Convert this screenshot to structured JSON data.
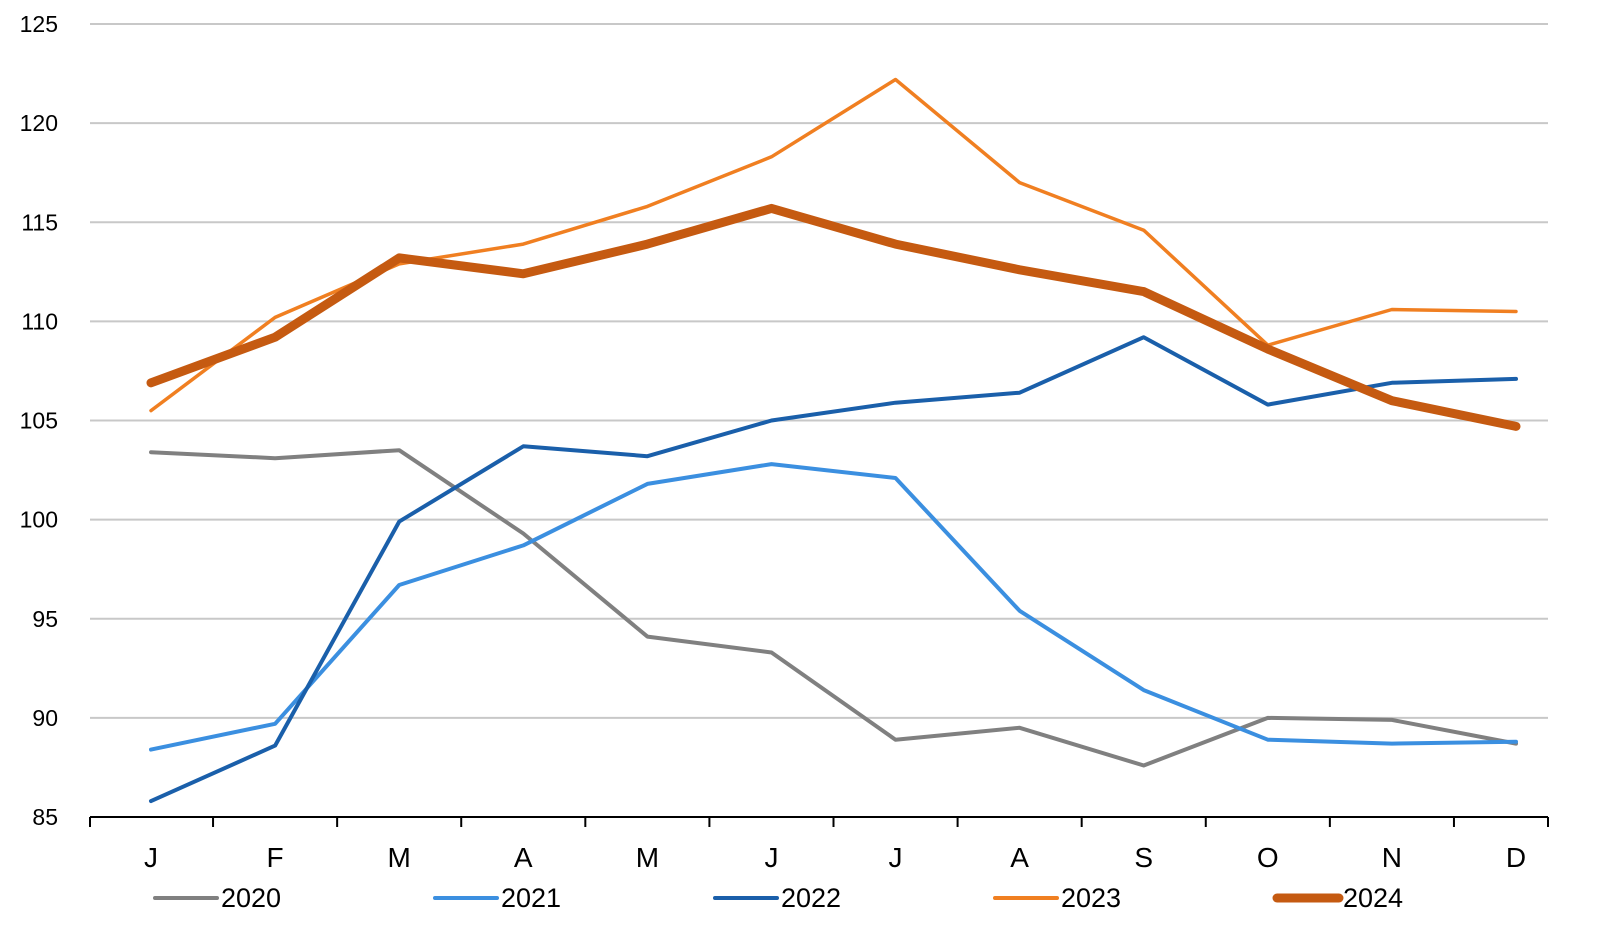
{
  "chart_data": {
    "type": "line",
    "title": "",
    "xlabel": "",
    "ylabel": "",
    "categories": [
      "J",
      "F",
      "M",
      "A",
      "M",
      "J",
      "J",
      "A",
      "S",
      "O",
      "N",
      "D"
    ],
    "ylim": [
      85,
      125
    ],
    "yticks": [
      85,
      90,
      95,
      100,
      105,
      110,
      115,
      120,
      125
    ],
    "grid": "horizontal",
    "legend_position": "bottom",
    "series": [
      {
        "name": "2020",
        "color": "#808080",
        "emphasis": false,
        "values": [
          103.4,
          103.1,
          103.5,
          99.3,
          94.1,
          93.3,
          88.9,
          89.5,
          87.6,
          90.0,
          89.9,
          88.7
        ]
      },
      {
        "name": "2021",
        "color": "#3b8fe0",
        "emphasis": false,
        "values": [
          88.4,
          89.7,
          96.7,
          98.7,
          101.8,
          102.8,
          102.1,
          95.4,
          91.4,
          88.9,
          88.7,
          88.8
        ]
      },
      {
        "name": "2022",
        "color": "#1a5faa",
        "emphasis": false,
        "values": [
          85.8,
          88.6,
          99.9,
          103.7,
          103.2,
          105.0,
          105.9,
          106.4,
          109.2,
          105.8,
          106.9,
          107.1
        ]
      },
      {
        "name": "2023",
        "color": "#f07f21",
        "emphasis": false,
        "values": [
          105.5,
          110.2,
          112.9,
          113.9,
          115.8,
          118.3,
          122.2,
          117.0,
          114.6,
          108.8,
          110.6,
          110.5
        ]
      },
      {
        "name": "2024",
        "color": "#c55a11",
        "emphasis": true,
        "values": [
          106.9,
          109.2,
          113.2,
          112.4,
          113.9,
          115.7,
          113.9,
          112.6,
          111.5,
          108.6,
          106.0,
          104.7
        ]
      }
    ]
  }
}
